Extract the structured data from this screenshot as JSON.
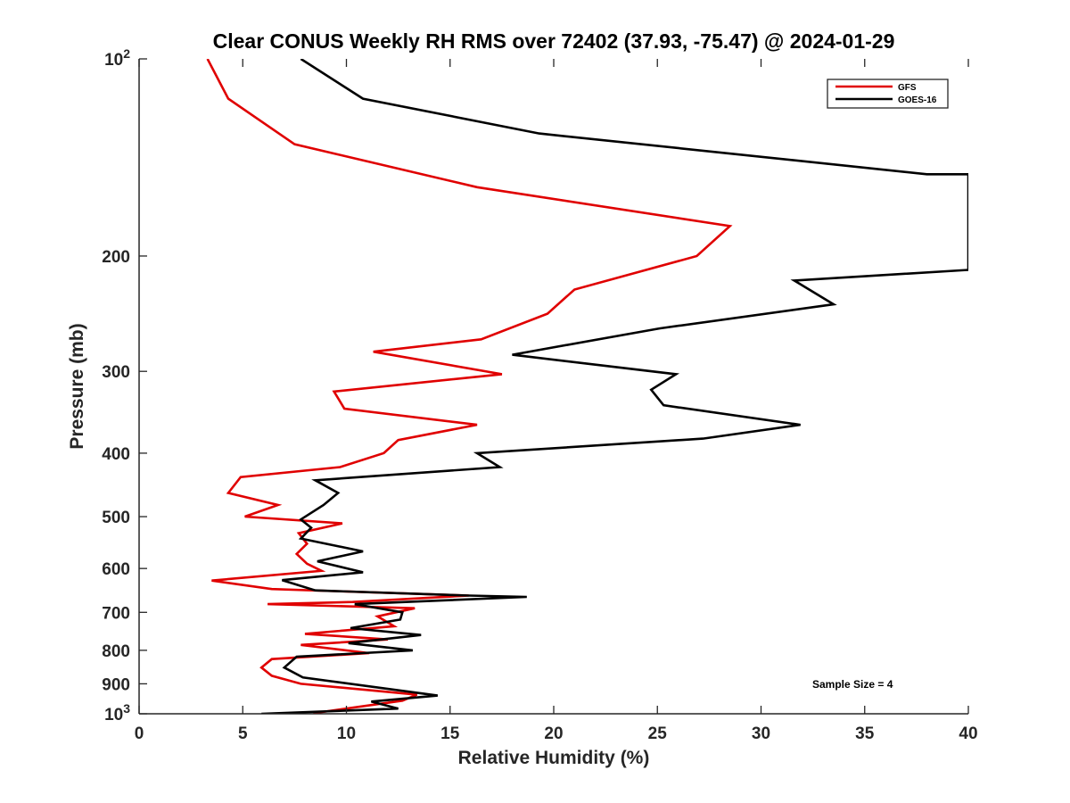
{
  "chart_data": {
    "type": "line",
    "title": "Clear CONUS Weekly RH RMS over 72402 (37.93, -75.47) @ 2024-01-29",
    "xlabel": "Relative Humidity (%)",
    "ylabel": "Pressure (mb)",
    "xlim": [
      0,
      40
    ],
    "ylim": [
      100,
      1000
    ],
    "yscale": "log",
    "y_reversed": true,
    "x_ticks": [
      "0",
      "5",
      "10",
      "15",
      "20",
      "25",
      "30",
      "35",
      "40"
    ],
    "y_ticks": [
      {
        "value": 100,
        "label": "10",
        "sup": "2"
      },
      {
        "value": 200,
        "label": "200",
        "sup": ""
      },
      {
        "value": 300,
        "label": "300",
        "sup": ""
      },
      {
        "value": 400,
        "label": "400",
        "sup": ""
      },
      {
        "value": 500,
        "label": "500",
        "sup": ""
      },
      {
        "value": 600,
        "label": "600",
        "sup": ""
      },
      {
        "value": 700,
        "label": "700",
        "sup": ""
      },
      {
        "value": 800,
        "label": "800",
        "sup": ""
      },
      {
        "value": 900,
        "label": "900",
        "sup": ""
      },
      {
        "value": 1000,
        "label": "10",
        "sup": "3"
      }
    ],
    "legend_position": "top-right",
    "annotation": "Sample Size = 4",
    "series": [
      {
        "name": "GFS",
        "color": "#e00000",
        "points": [
          [
            3.3,
            100
          ],
          [
            4.3,
            115
          ],
          [
            7.5,
            135
          ],
          [
            16.3,
            157
          ],
          [
            28.5,
            180
          ],
          [
            26.9,
            200
          ],
          [
            21.0,
            225
          ],
          [
            19.7,
            245
          ],
          [
            16.5,
            268
          ],
          [
            11.3,
            280
          ],
          [
            17.5,
            303
          ],
          [
            9.4,
            322
          ],
          [
            9.9,
            342
          ],
          [
            16.3,
            362
          ],
          [
            12.5,
            382
          ],
          [
            11.8,
            400
          ],
          [
            9.7,
            420
          ],
          [
            4.9,
            435
          ],
          [
            4.3,
            460
          ],
          [
            6.7,
            480
          ],
          [
            5.1,
            500
          ],
          [
            9.8,
            512
          ],
          [
            7.7,
            530
          ],
          [
            8.1,
            550
          ],
          [
            7.6,
            570
          ],
          [
            8.1,
            590
          ],
          [
            8.8,
            605
          ],
          [
            3.5,
            626
          ],
          [
            6.4,
            645
          ],
          [
            15.9,
            660
          ],
          [
            10.3,
            675
          ],
          [
            6.2,
            680
          ],
          [
            13.3,
            690
          ],
          [
            11.5,
            710
          ],
          [
            12.3,
            735
          ],
          [
            8.0,
            755
          ],
          [
            12.0,
            770
          ],
          [
            7.8,
            785
          ],
          [
            11.1,
            808
          ],
          [
            6.4,
            825
          ],
          [
            5.9,
            850
          ],
          [
            6.4,
            875
          ],
          [
            7.8,
            900
          ],
          [
            13.4,
            935
          ],
          [
            12.7,
            955
          ],
          [
            8.4,
            998
          ]
        ]
      },
      {
        "name": "GOES-16",
        "color": "#000000",
        "points": [
          [
            7.8,
            100
          ],
          [
            10.8,
            115
          ],
          [
            19.3,
            130
          ],
          [
            38.0,
            150
          ],
          [
            40.0,
            150
          ],
          [
            40.0,
            210
          ],
          [
            31.6,
            218
          ],
          [
            33.5,
            237
          ],
          [
            25.1,
            258
          ],
          [
            18.0,
            283
          ],
          [
            25.9,
            303
          ],
          [
            24.7,
            320
          ],
          [
            25.3,
            338
          ],
          [
            31.9,
            362
          ],
          [
            27.2,
            380
          ],
          [
            16.3,
            400
          ],
          [
            17.4,
            420
          ],
          [
            8.5,
            440
          ],
          [
            9.6,
            460
          ],
          [
            8.9,
            480
          ],
          [
            7.8,
            505
          ],
          [
            8.3,
            520
          ],
          [
            7.8,
            540
          ],
          [
            10.8,
            565
          ],
          [
            8.6,
            585
          ],
          [
            10.8,
            608
          ],
          [
            6.9,
            625
          ],
          [
            8.5,
            648
          ],
          [
            15.9,
            660
          ],
          [
            18.7,
            663
          ],
          [
            10.4,
            680
          ],
          [
            12.7,
            700
          ],
          [
            12.6,
            718
          ],
          [
            10.2,
            740
          ],
          [
            13.6,
            758
          ],
          [
            10.1,
            780
          ],
          [
            13.2,
            800
          ],
          [
            7.6,
            818
          ],
          [
            7.0,
            850
          ],
          [
            7.9,
            880
          ],
          [
            14.4,
            938
          ],
          [
            11.2,
            958
          ],
          [
            12.5,
            982
          ],
          [
            5.9,
            1000
          ]
        ]
      }
    ]
  }
}
